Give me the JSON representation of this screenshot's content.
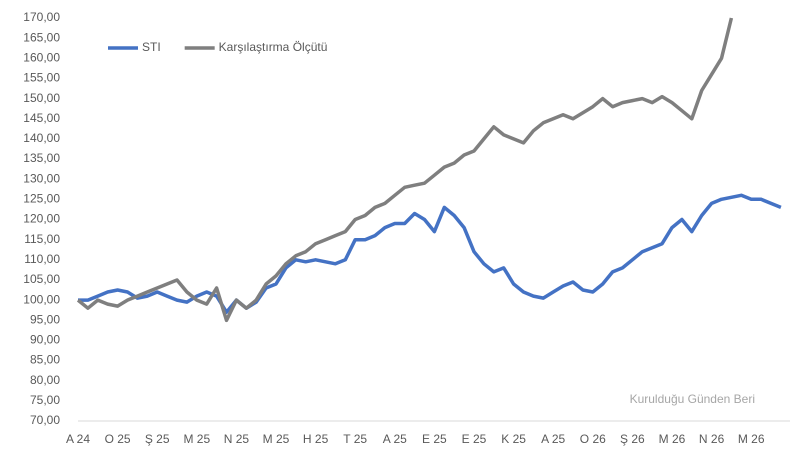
{
  "chart_data": {
    "type": "line",
    "annotation": "Kurulduğu Günden Beri",
    "categories": [
      "A 24",
      null,
      null,
      null,
      "O 25",
      null,
      null,
      null,
      "Ş 25",
      null,
      null,
      null,
      "M 25",
      null,
      null,
      null,
      "N 25",
      null,
      null,
      null,
      "M 25",
      null,
      null,
      null,
      "H 25",
      null,
      null,
      null,
      "T 25",
      null,
      null,
      null,
      "A 25",
      null,
      null,
      null,
      "E 25",
      null,
      null,
      null,
      "E 25",
      null,
      null,
      null,
      "K 25",
      null,
      null,
      null,
      "A 25",
      null,
      null,
      null,
      "O 26",
      null,
      null,
      null,
      "Ş 26",
      null,
      null,
      null,
      "M 26",
      null,
      null,
      null,
      "N 26",
      null,
      null,
      null,
      "M 26",
      null,
      null,
      null
    ],
    "series": [
      {
        "name": "STI",
        "color": "#4472c4",
        "values": [
          100,
          100,
          101,
          102,
          102.5,
          102,
          100.5,
          101,
          102,
          101,
          100,
          99.5,
          101,
          102,
          101,
          97,
          100,
          98,
          99.5,
          103,
          104,
          108,
          110,
          109.5,
          110,
          109.5,
          109,
          110,
          115,
          115,
          116,
          118,
          119,
          119,
          121.5,
          120,
          117,
          123,
          121,
          118,
          112,
          109,
          107,
          108,
          104,
          102,
          101,
          100.5,
          102,
          103.5,
          104.5,
          102.5,
          102,
          104,
          107,
          108,
          110,
          112,
          113,
          114,
          118,
          120,
          117,
          121,
          124,
          125,
          125.5,
          126,
          125,
          125,
          124,
          123
        ]
      },
      {
        "name": "Karşılaştırma Ölçütü",
        "color": "#7f7f7f",
        "values": [
          100,
          98,
          100,
          99,
          98.5,
          100,
          101,
          102,
          103,
          104,
          105,
          102,
          100,
          99,
          103,
          95,
          100,
          98,
          100,
          104,
          106,
          109,
          111,
          112,
          114,
          115,
          116,
          117,
          120,
          121,
          123,
          124,
          126,
          128,
          128.5,
          129,
          131,
          133,
          134,
          136,
          137,
          140,
          143,
          141,
          140,
          139,
          142,
          144,
          145,
          146,
          145,
          146.5,
          148,
          150,
          148,
          149,
          149.5,
          150,
          149,
          150.5,
          149,
          147,
          145,
          152,
          156,
          160,
          170,
          null,
          null,
          null,
          null,
          null
        ]
      }
    ],
    "ylim": [
      70,
      170
    ],
    "yticks": [
      {
        "value": 70,
        "label": "70,00"
      },
      {
        "value": 75,
        "label": "75,00"
      },
      {
        "value": 80,
        "label": "80,00"
      },
      {
        "value": 85,
        "label": "85,00"
      },
      {
        "value": 90,
        "label": "90,00"
      },
      {
        "value": 95,
        "label": "95,00"
      },
      {
        "value": 100,
        "label": "100,00"
      },
      {
        "value": 105,
        "label": "105,00"
      },
      {
        "value": 110,
        "label": "110,00"
      },
      {
        "value": 115,
        "label": "115,00"
      },
      {
        "value": 120,
        "label": "120,00"
      },
      {
        "value": 125,
        "label": "125,00"
      },
      {
        "value": 130,
        "label": "130,00"
      },
      {
        "value": 135,
        "label": "135,00"
      },
      {
        "value": 140,
        "label": "140,00"
      },
      {
        "value": 145,
        "label": "145,00"
      },
      {
        "value": 150,
        "label": "150,00"
      },
      {
        "value": 155,
        "label": "155,00"
      },
      {
        "value": 160,
        "label": "160,00"
      },
      {
        "value": 165,
        "label": "165,00"
      },
      {
        "value": 170,
        "label": "170,00"
      }
    ],
    "grid": false,
    "legend": "top-left"
  }
}
